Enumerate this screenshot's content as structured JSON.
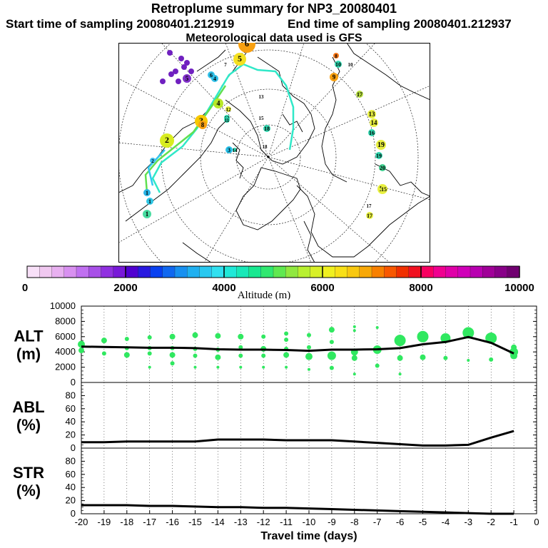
{
  "header": {
    "title": "Retroplume summary for NP3_20080401",
    "start": "Start time of sampling 20080401.212919",
    "end": "End time of sampling 20080401.212937",
    "met": "Meteorological data used is GFS"
  },
  "map": {
    "markers": [
      {
        "label": "1",
        "c": "#28b4e6"
      },
      {
        "label": "1",
        "c": "#30c8e6"
      },
      {
        "label": "1",
        "c": "#48dca0"
      },
      {
        "label": "2",
        "c": "#d8ec20"
      },
      {
        "label": "2",
        "c": "#40c0f0"
      },
      {
        "label": "3",
        "c": "#f8c800"
      },
      {
        "label": "3",
        "c": "#28c0e8"
      },
      {
        "label": "4",
        "c": "#b8e828"
      },
      {
        "label": "4",
        "c": "#30c0e8"
      },
      {
        "label": "5",
        "c": "#f4e020"
      },
      {
        "label": "5",
        "c": "#8030c8"
      },
      {
        "label": "6",
        "c": "#f8a010"
      },
      {
        "label": "6",
        "c": "#30c0e8"
      },
      {
        "label": "7",
        "c": "#ffffff"
      },
      {
        "label": "8",
        "c": "#f8a010"
      },
      {
        "label": "8",
        "c": "#f87818"
      },
      {
        "label": "9",
        "c": "#f8a010"
      },
      {
        "label": "10",
        "c": "#30d8b0"
      },
      {
        "label": "10",
        "c": "#ffffff"
      },
      {
        "label": "12",
        "c": "#30d8b0"
      },
      {
        "label": "13",
        "c": "#e8f040"
      },
      {
        "label": "13",
        "c": "#ffffff"
      },
      {
        "label": "14",
        "c": "#e8f040"
      },
      {
        "label": "15",
        "c": "#ffffff"
      },
      {
        "label": "16",
        "c": "#e8f040"
      },
      {
        "label": "16",
        "c": "#30d8b0"
      },
      {
        "label": "17",
        "c": "#b8e040"
      },
      {
        "label": "17",
        "c": "#e8f040"
      },
      {
        "label": "18",
        "c": "#30d8b0"
      },
      {
        "label": "18",
        "c": "#ffffff"
      },
      {
        "label": "19",
        "c": "#30d8b0"
      },
      {
        "label": "19",
        "c": "#e8f040"
      },
      {
        "label": "20",
        "c": "#40d090"
      },
      {
        "label": "15",
        "c": "#e8f040"
      },
      {
        "label": "11",
        "c": "#30d8b0"
      },
      {
        "label": "12",
        "c": "#e8f040"
      },
      {
        "label": "17",
        "c": "#ffffff"
      },
      {
        "label": "14",
        "c": "#30d8b0"
      }
    ]
  },
  "colorbar": {
    "title": "Altitude (m)",
    "ticks": [
      "0",
      "2000",
      "4000",
      "6000",
      "8000",
      "10000"
    ],
    "min": 0,
    "max": 10000,
    "colors": [
      "#f8e0f8",
      "#f0c8f0",
      "#e8b0f0",
      "#d890f0",
      "#c070f0",
      "#a850e8",
      "#9030e0",
      "#7818d8",
      "#5000d0",
      "#2818e0",
      "#0840f0",
      "#1068f0",
      "#1890f0",
      "#20b0f0",
      "#28c8f0",
      "#30e0f0",
      "#20e8d8",
      "#18e8b8",
      "#18e890",
      "#30e870",
      "#60e850",
      "#90e840",
      "#b8f030",
      "#d8f028",
      "#f0f020",
      "#f8e018",
      "#f8c810",
      "#f8a808",
      "#f88000",
      "#f85800",
      "#f03000",
      "#f01020",
      "#f80060",
      "#f00090",
      "#e000a8",
      "#d000b8",
      "#b800b0",
      "#a00098",
      "#880088",
      "#700070"
    ]
  },
  "chart_data": [
    {
      "type": "scatter+line",
      "panel": "ALT",
      "ylabel": "ALT\n(m)",
      "ylim": [
        0,
        10000
      ],
      "yticks": [
        "0",
        "2000",
        "4000",
        "6000",
        "8000",
        "10000"
      ],
      "xlim": [
        -20,
        0
      ],
      "line": {
        "x": [
          -20,
          -19,
          -18,
          -17,
          -16,
          -15,
          -14,
          -13,
          -12,
          -11,
          -10,
          -9,
          -8,
          -7,
          -6,
          -5,
          -4,
          -3,
          -2,
          -1
        ],
        "y": [
          4700,
          4650,
          4600,
          4550,
          4550,
          4500,
          4350,
          4300,
          4300,
          4250,
          4150,
          4300,
          4300,
          4350,
          4500,
          5000,
          5300,
          5950,
          5200,
          3800
        ]
      },
      "points": [
        {
          "x": -20,
          "y": 5000,
          "s": 5
        },
        {
          "x": -20,
          "y": 4200,
          "s": 4
        },
        {
          "x": -19,
          "y": 5500,
          "s": 4
        },
        {
          "x": -19,
          "y": 3800,
          "s": 3
        },
        {
          "x": -18,
          "y": 5700,
          "s": 3
        },
        {
          "x": -18,
          "y": 4500,
          "s": 3
        },
        {
          "x": -18,
          "y": 3600,
          "s": 4
        },
        {
          "x": -17,
          "y": 5900,
          "s": 3
        },
        {
          "x": -17,
          "y": 4500,
          "s": 3
        },
        {
          "x": -17,
          "y": 3800,
          "s": 3
        },
        {
          "x": -17,
          "y": 2000,
          "s": 2
        },
        {
          "x": -16,
          "y": 6000,
          "s": 4
        },
        {
          "x": -16,
          "y": 4500,
          "s": 3
        },
        {
          "x": -16,
          "y": 3600,
          "s": 4
        },
        {
          "x": -16,
          "y": 2500,
          "s": 3
        },
        {
          "x": -15,
          "y": 6200,
          "s": 4
        },
        {
          "x": -15,
          "y": 4400,
          "s": 3
        },
        {
          "x": -15,
          "y": 3500,
          "s": 3
        },
        {
          "x": -15,
          "y": 2000,
          "s": 2
        },
        {
          "x": -14,
          "y": 6100,
          "s": 4
        },
        {
          "x": -14,
          "y": 4300,
          "s": 3
        },
        {
          "x": -14,
          "y": 3300,
          "s": 4
        },
        {
          "x": -14,
          "y": 2000,
          "s": 2
        },
        {
          "x": -13,
          "y": 6000,
          "s": 4
        },
        {
          "x": -13,
          "y": 4600,
          "s": 3
        },
        {
          "x": -13,
          "y": 3500,
          "s": 3
        },
        {
          "x": -13,
          "y": 2000,
          "s": 2
        },
        {
          "x": -12,
          "y": 6000,
          "s": 3
        },
        {
          "x": -12,
          "y": 4400,
          "s": 4
        },
        {
          "x": -12,
          "y": 3500,
          "s": 3
        },
        {
          "x": -12,
          "y": 2000,
          "s": 2
        },
        {
          "x": -11,
          "y": 6400,
          "s": 3
        },
        {
          "x": -11,
          "y": 5600,
          "s": 3
        },
        {
          "x": -11,
          "y": 4400,
          "s": 3
        },
        {
          "x": -11,
          "y": 3600,
          "s": 4
        },
        {
          "x": -11,
          "y": 2000,
          "s": 2
        },
        {
          "x": -10,
          "y": 6200,
          "s": 3
        },
        {
          "x": -10,
          "y": 4600,
          "s": 3
        },
        {
          "x": -10,
          "y": 3400,
          "s": 5
        },
        {
          "x": -10,
          "y": 1700,
          "s": 2
        },
        {
          "x": -9,
          "y": 6900,
          "s": 4
        },
        {
          "x": -9,
          "y": 5300,
          "s": 3
        },
        {
          "x": -9,
          "y": 3500,
          "s": 6
        },
        {
          "x": -9,
          "y": 1900,
          "s": 3
        },
        {
          "x": -8,
          "y": 7300,
          "s": 2
        },
        {
          "x": -8,
          "y": 6800,
          "s": 2
        },
        {
          "x": -8,
          "y": 4000,
          "s": 5
        },
        {
          "x": -8,
          "y": 3200,
          "s": 4
        },
        {
          "x": -8,
          "y": 1100,
          "s": 2
        },
        {
          "x": -7,
          "y": 7200,
          "s": 2
        },
        {
          "x": -7,
          "y": 4300,
          "s": 6
        },
        {
          "x": -7,
          "y": 2200,
          "s": 3
        },
        {
          "x": -6,
          "y": 5500,
          "s": 8
        },
        {
          "x": -6,
          "y": 3200,
          "s": 4
        },
        {
          "x": -6,
          "y": 1100,
          "s": 2
        },
        {
          "x": -5,
          "y": 6000,
          "s": 8
        },
        {
          "x": -5,
          "y": 3300,
          "s": 4
        },
        {
          "x": -4,
          "y": 5800,
          "s": 7
        },
        {
          "x": -4,
          "y": 3200,
          "s": 3
        },
        {
          "x": -3,
          "y": 6500,
          "s": 8
        },
        {
          "x": -3,
          "y": 2900,
          "s": 2
        },
        {
          "x": -2,
          "y": 5800,
          "s": 8
        },
        {
          "x": -2,
          "y": 3000,
          "s": 3
        },
        {
          "x": -1,
          "y": 4000,
          "s": 6
        },
        {
          "x": -1,
          "y": 3500,
          "s": 5
        },
        {
          "x": -1,
          "y": 4600,
          "s": 4
        }
      ]
    },
    {
      "type": "line",
      "panel": "ABL",
      "ylabel": "ABL\n(%)",
      "ylim": [
        0,
        100
      ],
      "yticks": [
        "0",
        "20",
        "40",
        "60",
        "80"
      ],
      "xlim": [
        -20,
        0
      ],
      "x": [
        -20,
        -19,
        -18,
        -17,
        -16,
        -15,
        -14,
        -13,
        -12,
        -11,
        -10,
        -9,
        -8,
        -7,
        -6,
        -5,
        -4,
        -3,
        -2,
        -1
      ],
      "y": [
        9,
        9,
        10,
        10,
        10,
        10,
        13,
        13,
        13,
        12,
        12,
        12,
        10,
        8,
        6,
        4,
        4,
        5,
        16,
        26
      ]
    },
    {
      "type": "line",
      "panel": "STR",
      "ylabel": "STR\n(%)",
      "ylim": [
        0,
        100
      ],
      "yticks": [
        "0",
        "20",
        "40",
        "60",
        "80"
      ],
      "xlim": [
        -20,
        0
      ],
      "x": [
        -20,
        -19,
        -18,
        -17,
        -16,
        -15,
        -14,
        -13,
        -12,
        -11,
        -10,
        -9,
        -8,
        -7,
        -6,
        -5,
        -4,
        -3,
        -2,
        -1
      ],
      "y": [
        13,
        13,
        13,
        12,
        12,
        11,
        10,
        10,
        9,
        9,
        8,
        7,
        6,
        5,
        4,
        3,
        2,
        1,
        0,
        0
      ],
      "xticks": [
        "-20",
        "-19",
        "-18",
        "-17",
        "-16",
        "-15",
        "-14",
        "-13",
        "-12",
        "-11",
        "-10",
        "-9",
        "-8",
        "-7",
        "-6",
        "-5",
        "-4",
        "-3",
        "-2",
        "-1",
        "0"
      ],
      "xlabel": "Travel time (days)"
    }
  ]
}
